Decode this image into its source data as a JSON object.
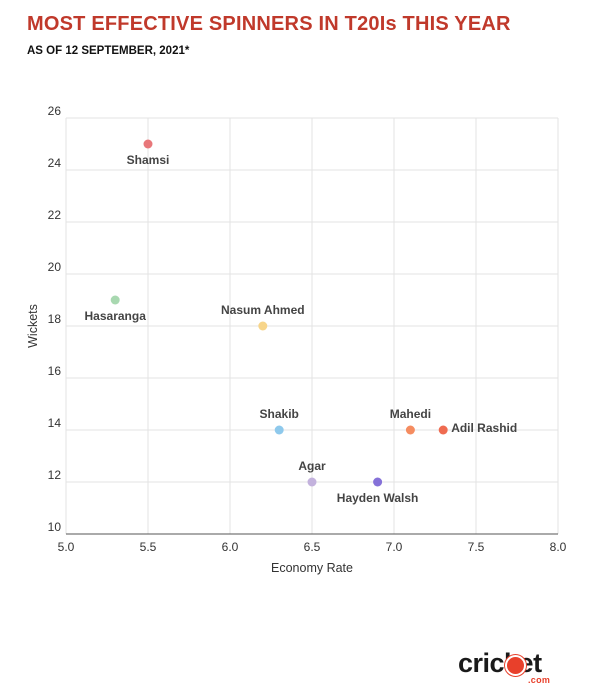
{
  "header": {
    "title": "MOST EFFECTIVE SPINNERS IN T20Is THIS YEAR",
    "subtitle": "AS OF 12 SEPTEMBER, 2021*"
  },
  "logo": {
    "word": "cricket",
    "suffix": ".com",
    "accent_color": "#e8402b"
  },
  "chart_data": {
    "type": "scatter",
    "xlabel": "Economy Rate",
    "ylabel": "Wickets",
    "xlim": [
      5.0,
      8.0
    ],
    "ylim": [
      10,
      26
    ],
    "x_ticks": [
      "5.0",
      "5.5",
      "6.0",
      "6.5",
      "7.0",
      "7.5",
      "8.0"
    ],
    "y_ticks": [
      "10",
      "12",
      "14",
      "16",
      "18",
      "20",
      "22",
      "24",
      "26"
    ],
    "grid": true,
    "points": [
      {
        "label": "Shamsi",
        "x": 5.5,
        "y": 25,
        "color": "#e8777a",
        "label_pos": "below"
      },
      {
        "label": "Hasaranga",
        "x": 5.3,
        "y": 19,
        "color": "#a8d8b0",
        "label_pos": "below"
      },
      {
        "label": "Nasum Ahmed",
        "x": 6.2,
        "y": 18,
        "color": "#f7d58a",
        "label_pos": "above"
      },
      {
        "label": "Shakib",
        "x": 6.3,
        "y": 14,
        "color": "#8ec9ec",
        "label_pos": "above"
      },
      {
        "label": "Agar",
        "x": 6.5,
        "y": 12,
        "color": "#c3b2dd",
        "label_pos": "above"
      },
      {
        "label": "Hayden Walsh",
        "x": 6.9,
        "y": 12,
        "color": "#8571d8",
        "label_pos": "below"
      },
      {
        "label": "Mahedi",
        "x": 7.1,
        "y": 14,
        "color": "#f58c60",
        "label_pos": "above"
      },
      {
        "label": "Adil Rashid",
        "x": 7.3,
        "y": 14,
        "color": "#ef6b50",
        "label_pos": "right"
      }
    ]
  }
}
